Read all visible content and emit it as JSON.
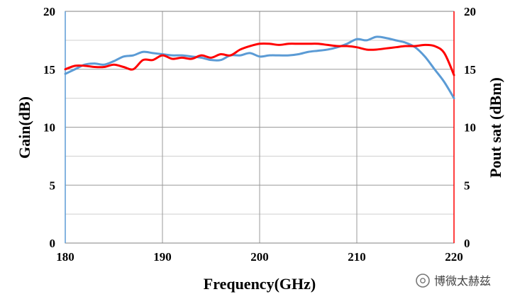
{
  "chart_data": {
    "type": "line",
    "title": "",
    "xlabel": "Frequency(GHz)",
    "ylabel_left": "Gain(dB)",
    "ylabel_right": "Pout sat (dBm)",
    "xlim": [
      180,
      220
    ],
    "ylim_left": [
      0,
      20
    ],
    "ylim_right": [
      0,
      20
    ],
    "x_ticks": [
      "180",
      "190",
      "200",
      "210",
      "220"
    ],
    "y_ticks_left": [
      "0",
      "5",
      "10",
      "15",
      "20"
    ],
    "y_ticks_right": [
      "0",
      "5",
      "10",
      "15",
      "20"
    ],
    "grid": true,
    "legend": "none",
    "series": [
      {
        "axis": "left",
        "color": "#5b9bd5",
        "x": [
          180,
          181,
          182,
          183,
          184,
          185,
          186,
          187,
          188,
          189,
          190,
          191,
          192,
          193,
          194,
          195,
          196,
          197,
          198,
          199,
          200,
          201,
          202,
          203,
          204,
          205,
          206,
          207,
          208,
          209,
          210,
          211,
          212,
          213,
          214,
          215,
          216,
          217,
          218,
          219,
          220
        ],
        "values": [
          14.6,
          15.0,
          15.4,
          15.5,
          15.4,
          15.7,
          16.1,
          16.2,
          16.5,
          16.4,
          16.3,
          16.2,
          16.2,
          16.1,
          16.0,
          15.8,
          15.8,
          16.2,
          16.2,
          16.4,
          16.1,
          16.2,
          16.2,
          16.2,
          16.3,
          16.5,
          16.6,
          16.7,
          16.9,
          17.2,
          17.6,
          17.5,
          17.8,
          17.7,
          17.5,
          17.3,
          16.9,
          16.1,
          15.0,
          13.9,
          12.5
        ]
      },
      {
        "axis": "right",
        "color": "#ff0000",
        "x": [
          180,
          181,
          182,
          183,
          184,
          185,
          186,
          187,
          188,
          189,
          190,
          191,
          192,
          193,
          194,
          195,
          196,
          197,
          198,
          199,
          200,
          201,
          202,
          203,
          204,
          205,
          206,
          207,
          208,
          209,
          210,
          211,
          212,
          213,
          214,
          215,
          216,
          217,
          218,
          219,
          220
        ],
        "values": [
          15.0,
          15.3,
          15.3,
          15.2,
          15.2,
          15.4,
          15.2,
          15.0,
          15.8,
          15.8,
          16.2,
          15.9,
          16.0,
          15.9,
          16.2,
          16.0,
          16.3,
          16.2,
          16.7,
          17.0,
          17.2,
          17.2,
          17.1,
          17.2,
          17.2,
          17.2,
          17.2,
          17.1,
          17.0,
          17.0,
          16.9,
          16.7,
          16.7,
          16.8,
          16.9,
          17.0,
          17.0,
          17.1,
          17.0,
          16.4,
          14.5
        ]
      }
    ]
  },
  "watermark": {
    "text": "博微太赫兹",
    "icon": "wechat-official-account-icon"
  },
  "colors": {
    "left_axis": "#5b9bd5",
    "right_axis": "#ff0000",
    "grid": "#b0b0b0",
    "frame": "#808080"
  }
}
